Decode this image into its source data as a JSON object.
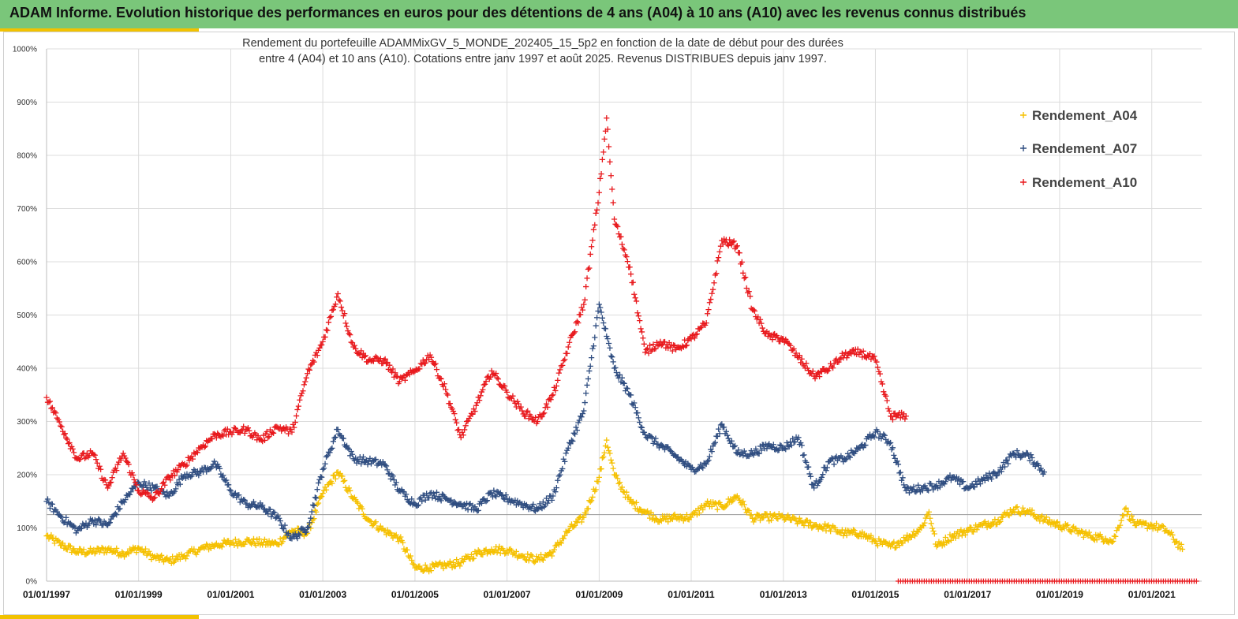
{
  "banner": {
    "title": "ADAM Informe. Evolution historique des performances en euros pour des détentions de 4 ans (A04) à 10 ans (A10) avec les revenus connus distribués"
  },
  "colors": {
    "banner": "#7ac67a",
    "accent": "#f2c200",
    "A04": "#f5c000",
    "A07": "#2f4d80",
    "A10": "#e8181c"
  },
  "chart_data": {
    "type": "scatter",
    "title": "Rendement du portefeuille ADAMMixGV_5_MONDE_202405_15_5p2 en fonction de la date de début pour des durées",
    "subtitle": "entre 4 (A04) et 10 ans (A10). Cotations entre janv 1997 et août 2025. Revenus DISTRIBUES depuis janv 1997.",
    "xlabel": "",
    "ylabel": "",
    "xlim": [
      "1997-01-01",
      "2022-02-01"
    ],
    "ylim": [
      0,
      10
    ],
    "y_ticks": [
      "0%",
      "100%",
      "200%",
      "300%",
      "400%",
      "500%",
      "600%",
      "700%",
      "800%",
      "900%",
      "1000%"
    ],
    "x_ticks": [
      "01/01/1997",
      "01/01/1999",
      "01/01/2001",
      "01/01/2003",
      "01/01/2005",
      "01/01/2007",
      "01/01/2009",
      "01/01/2011",
      "01/01/2013",
      "01/01/2015",
      "01/01/2017",
      "01/01/2019",
      "01/01/2021"
    ],
    "reference_line_y": 1.25,
    "grid": true,
    "legend_position": "top-right",
    "series": [
      {
        "name": "Rendement_A04",
        "x": [
          "1997-01-01",
          "1997-05-01",
          "1997-09-01",
          "1998-01-01",
          "1998-05-01",
          "1998-09-01",
          "1999-01-01",
          "1999-05-01",
          "1999-09-01",
          "2000-01-01",
          "2000-05-01",
          "2000-09-01",
          "2001-01-01",
          "2001-05-01",
          "2001-09-01",
          "2002-01-01",
          "2002-05-01",
          "2002-09-01",
          "2003-01-01",
          "2003-05-01",
          "2003-09-01",
          "2004-01-01",
          "2004-05-01",
          "2004-09-01",
          "2005-01-01",
          "2005-05-01",
          "2005-09-01",
          "2006-01-01",
          "2006-05-01",
          "2006-09-01",
          "2007-01-01",
          "2007-05-01",
          "2007-09-01",
          "2008-01-01",
          "2008-05-01",
          "2008-09-01",
          "2009-01-01",
          "2009-03-01",
          "2009-05-01",
          "2009-09-01",
          "2010-01-01",
          "2010-05-01",
          "2010-09-01",
          "2011-01-01",
          "2011-05-01",
          "2011-09-01",
          "2012-01-01",
          "2012-05-01",
          "2012-09-01",
          "2013-01-01",
          "2013-05-01",
          "2013-09-01",
          "2014-01-01",
          "2014-05-01",
          "2014-09-01",
          "2015-01-01",
          "2015-05-01",
          "2015-09-01",
          "2016-01-01",
          "2016-03-01",
          "2016-05-01",
          "2016-09-01",
          "2017-01-01",
          "2017-05-01",
          "2017-09-01",
          "2018-01-01",
          "2018-05-01",
          "2018-09-01",
          "2019-01-01",
          "2019-05-01",
          "2019-09-01",
          "2020-01-01",
          "2020-03-01",
          "2020-06-01",
          "2020-09-01",
          "2021-01-01",
          "2021-05-01",
          "2021-09-01"
        ],
        "values": [
          0.85,
          0.68,
          0.55,
          0.55,
          0.6,
          0.52,
          0.62,
          0.45,
          0.38,
          0.48,
          0.6,
          0.68,
          0.72,
          0.75,
          0.72,
          0.7,
          0.95,
          0.9,
          1.65,
          2.05,
          1.55,
          1.15,
          0.95,
          0.8,
          0.25,
          0.25,
          0.3,
          0.35,
          0.52,
          0.6,
          0.58,
          0.48,
          0.4,
          0.55,
          0.95,
          1.2,
          1.95,
          2.65,
          2.0,
          1.5,
          1.3,
          1.15,
          1.2,
          1.2,
          1.45,
          1.4,
          1.6,
          1.18,
          1.2,
          1.2,
          1.12,
          1.05,
          1.0,
          0.9,
          0.9,
          0.75,
          0.65,
          0.8,
          1.0,
          1.3,
          0.65,
          0.85,
          0.95,
          1.05,
          1.15,
          1.35,
          1.3,
          1.15,
          1.05,
          0.95,
          0.85,
          0.8,
          0.75,
          1.35,
          1.05,
          1.05,
          0.95,
          0.6
        ]
      },
      {
        "name": "Rendement_A07",
        "x": [
          "1997-01-01",
          "1997-05-01",
          "1997-09-01",
          "1998-01-01",
          "1998-05-01",
          "1998-09-01",
          "1999-01-01",
          "1999-05-01",
          "1999-09-01",
          "2000-01-01",
          "2000-05-01",
          "2000-09-01",
          "2001-01-01",
          "2001-05-01",
          "2001-09-01",
          "2002-01-01",
          "2002-05-01",
          "2002-09-01",
          "2003-01-01",
          "2003-05-01",
          "2003-09-01",
          "2004-01-01",
          "2004-05-01",
          "2004-09-01",
          "2005-01-01",
          "2005-05-01",
          "2005-09-01",
          "2006-01-01",
          "2006-05-01",
          "2006-09-01",
          "2007-01-01",
          "2007-05-01",
          "2007-09-01",
          "2008-01-01",
          "2008-05-01",
          "2008-09-01",
          "2009-01-01",
          "2009-03-01",
          "2009-05-01",
          "2009-09-01",
          "2010-01-01",
          "2010-05-01",
          "2010-09-01",
          "2011-01-01",
          "2011-05-01",
          "2011-09-01",
          "2012-01-01",
          "2012-05-01",
          "2012-09-01",
          "2013-01-01",
          "2013-05-01",
          "2013-09-01",
          "2014-01-01",
          "2014-05-01",
          "2014-09-01",
          "2015-01-01",
          "2015-05-01",
          "2015-09-01",
          "2016-01-01",
          "2016-05-01",
          "2016-09-01",
          "2017-01-01",
          "2017-05-01",
          "2017-09-01",
          "2018-01-01",
          "2018-05-01",
          "2018-09-01"
        ],
        "values": [
          1.5,
          1.2,
          0.95,
          1.15,
          1.05,
          1.5,
          1.85,
          1.75,
          1.6,
          2.0,
          2.05,
          2.2,
          1.7,
          1.45,
          1.4,
          1.2,
          0.8,
          1.0,
          2.1,
          2.85,
          2.3,
          2.25,
          2.2,
          1.7,
          1.45,
          1.65,
          1.55,
          1.45,
          1.35,
          1.65,
          1.55,
          1.45,
          1.35,
          1.6,
          2.5,
          3.2,
          5.2,
          4.6,
          4.0,
          3.5,
          2.75,
          2.55,
          2.35,
          2.1,
          2.2,
          2.95,
          2.4,
          2.4,
          2.55,
          2.5,
          2.7,
          1.75,
          2.25,
          2.3,
          2.5,
          2.8,
          2.6,
          1.7,
          1.75,
          1.8,
          1.95,
          1.75,
          1.9,
          2.05,
          2.4,
          2.35,
          2.05
        ]
      },
      {
        "name": "Rendement_A10",
        "x": [
          "1997-01-01",
          "1997-05-01",
          "1997-09-01",
          "1998-01-01",
          "1998-05-01",
          "1998-09-01",
          "1999-01-01",
          "1999-05-01",
          "1999-09-01",
          "2000-01-01",
          "2000-05-01",
          "2000-09-01",
          "2001-01-01",
          "2001-05-01",
          "2001-09-01",
          "2002-01-01",
          "2002-05-01",
          "2002-09-01",
          "2003-01-01",
          "2003-05-01",
          "2003-09-01",
          "2004-01-01",
          "2004-05-01",
          "2004-09-01",
          "2005-01-01",
          "2005-05-01",
          "2005-09-01",
          "2006-01-01",
          "2006-05-01",
          "2006-09-01",
          "2007-01-01",
          "2007-05-01",
          "2007-09-01",
          "2008-01-01",
          "2008-05-01",
          "2008-09-01",
          "2009-01-01",
          "2009-03-01",
          "2009-05-01",
          "2009-09-01",
          "2010-01-01",
          "2010-05-01",
          "2010-09-01",
          "2011-01-01",
          "2011-05-01",
          "2011-09-01",
          "2012-01-01",
          "2012-05-01",
          "2012-09-01",
          "2013-01-01",
          "2013-05-01",
          "2013-09-01",
          "2014-01-01",
          "2014-05-01",
          "2014-09-01",
          "2015-01-01",
          "2015-05-01",
          "2015-09-01"
        ],
        "values": [
          3.45,
          2.9,
          2.3,
          2.4,
          1.75,
          2.4,
          1.7,
          1.55,
          1.95,
          2.2,
          2.5,
          2.75,
          2.8,
          2.85,
          2.65,
          2.9,
          2.8,
          3.9,
          4.5,
          5.4,
          4.4,
          4.15,
          4.15,
          3.75,
          3.95,
          4.25,
          3.6,
          2.7,
          3.3,
          3.95,
          3.55,
          3.2,
          3.0,
          3.5,
          4.4,
          5.2,
          7.3,
          8.7,
          6.8,
          5.9,
          4.3,
          4.5,
          4.35,
          4.55,
          4.85,
          6.4,
          6.3,
          5.1,
          4.6,
          4.55,
          4.2,
          3.85,
          4.0,
          4.25,
          4.3,
          4.15,
          3.1,
          3.1
        ]
      },
      {
        "name": "",
        "x_start": "2015-07-01",
        "x_end": "2022-02-01",
        "constant_value": 0
      }
    ]
  }
}
